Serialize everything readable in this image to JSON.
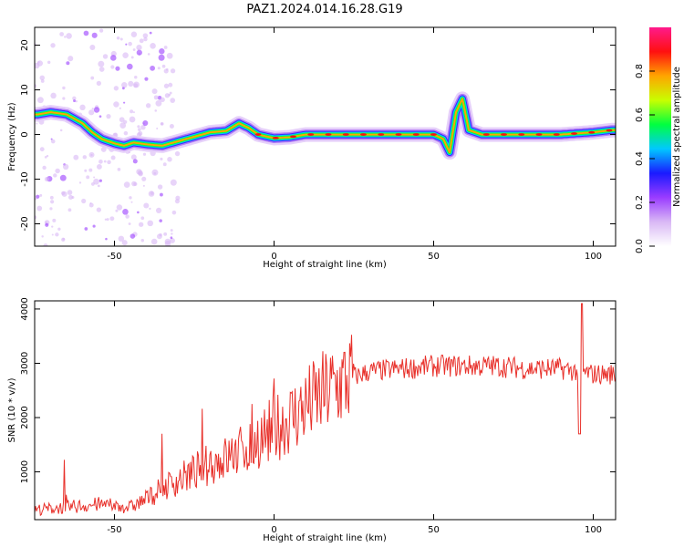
{
  "title": "PAZ1.2024.014.16.28.G19",
  "chart_data": [
    {
      "type": "heatmap",
      "xlabel": "Height of straight line (km)",
      "ylabel": "Frequency (Hz)",
      "xlim": [
        -75,
        107
      ],
      "ylim": [
        -25,
        24
      ],
      "xticks": [
        -50,
        0,
        50,
        100
      ],
      "yticks": [
        -20,
        -10,
        0,
        10,
        20
      ],
      "colorbar": {
        "label": "Normalized spectral amplitude",
        "range": [
          0,
          1
        ],
        "ticks": [
          "0.0",
          "0.2",
          "0.4",
          "0.6",
          "0.8"
        ],
        "colormap": [
          "#ffffff",
          "#d9b8f5",
          "#9a3cff",
          "#1a1aff",
          "#00c8ff",
          "#00ff40",
          "#c8ff00",
          "#ffa500",
          "#ff1010",
          "#ff1a8c"
        ]
      },
      "ridge": {
        "x": [
          -74,
          -70,
          -65,
          -60,
          -57,
          -54,
          -50,
          -47,
          -44,
          -40,
          -35,
          -30,
          -25,
          -20,
          -15,
          -11,
          -8,
          -5,
          -2,
          0,
          5,
          10,
          20,
          30,
          40,
          50,
          53,
          55,
          57,
          59,
          61,
          65,
          70,
          80,
          90,
          100,
          106
        ],
        "y": [
          4.5,
          5,
          4.5,
          2.5,
          0.5,
          -1,
          -2,
          -2.5,
          -1.8,
          -2.2,
          -2.5,
          -1.5,
          -0.5,
          0.5,
          0.8,
          2.5,
          1.5,
          0,
          -0.5,
          -0.8,
          -0.6,
          0,
          0,
          0,
          0,
          0,
          -1,
          -4,
          5,
          8,
          1,
          0,
          0,
          0,
          0,
          0.5,
          1
        ]
      }
    },
    {
      "type": "line",
      "xlabel": "Height of straight line (km)",
      "ylabel": "SNR (10 * v/v)",
      "xlim": [
        -75,
        107
      ],
      "ylim": [
        120,
        4150
      ],
      "xticks": [
        -50,
        0,
        50,
        100
      ],
      "yticks": [
        1000,
        2000,
        3000,
        4000
      ],
      "color": "#e8302a",
      "trend": {
        "x": [
          -75,
          -65,
          -55,
          -45,
          -40,
          -35,
          -30,
          -25,
          -20,
          -15,
          -10,
          -5,
          0,
          5,
          10,
          15,
          20,
          25,
          30,
          40,
          50,
          60,
          70,
          80,
          90,
          95,
          100,
          107
        ],
        "y": [
          300,
          350,
          400,
          350,
          500,
          700,
          850,
          1000,
          1150,
          1250,
          1400,
          1600,
          1800,
          2000,
          2200,
          2400,
          2600,
          2750,
          2850,
          2900,
          2950,
          2950,
          2950,
          2900,
          2900,
          2850,
          2800,
          2800
        ]
      }
    }
  ]
}
